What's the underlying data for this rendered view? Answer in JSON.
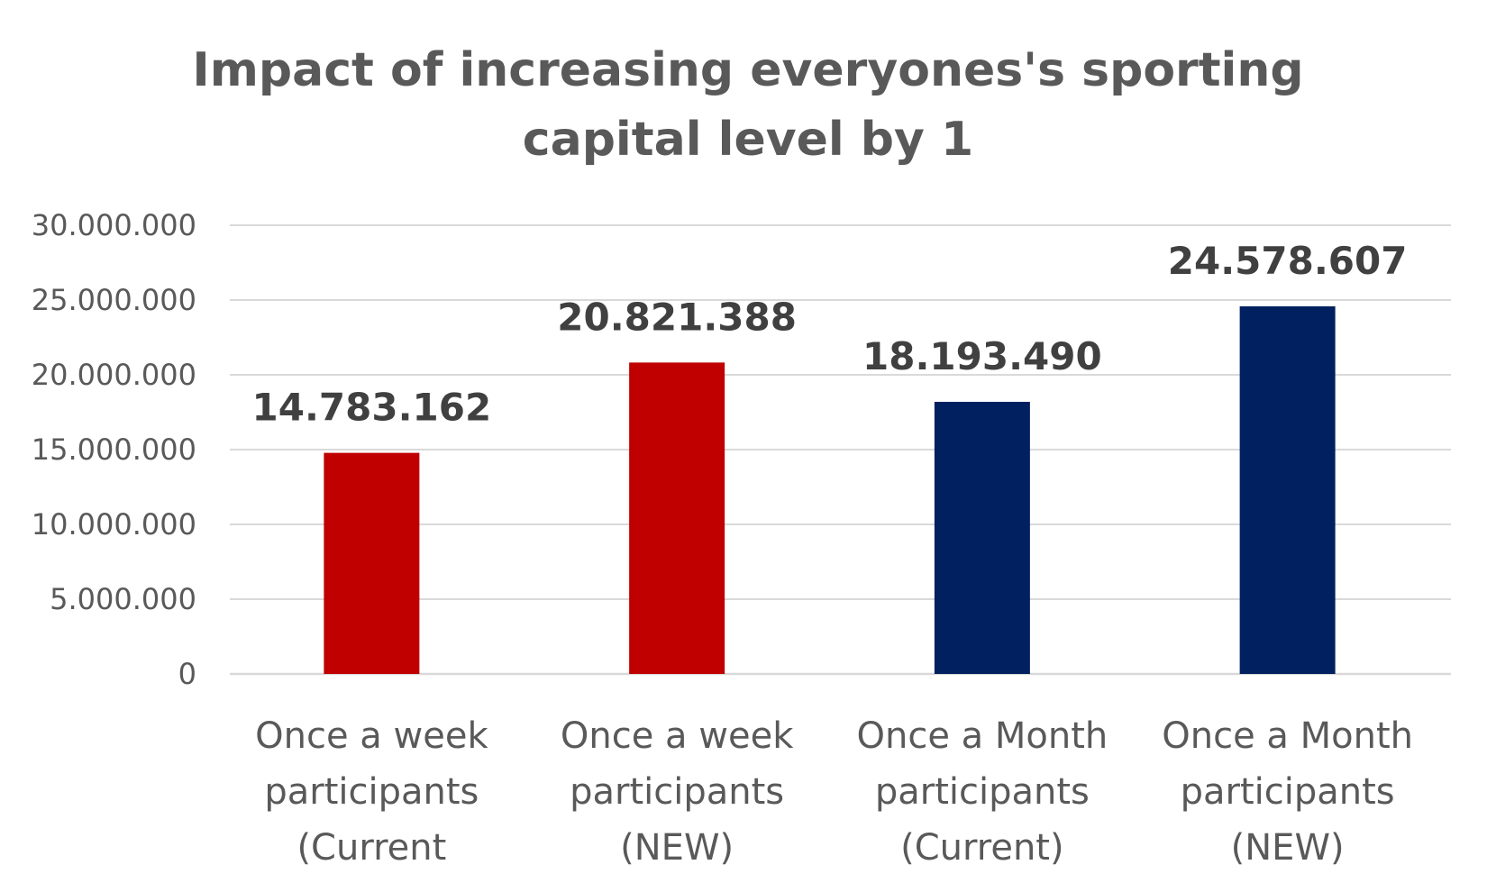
{
  "chart_data": {
    "type": "bar",
    "title_lines": [
      "Impact of increasing everyones's sporting",
      "capital level by 1"
    ],
    "title": "Impact of increasing everyones's sporting capital level by 1",
    "categories": [
      "Once a week participants (Current",
      "Once a week participants (NEW)",
      "Once a Month participants (Current)",
      "Once a Month participants (NEW)"
    ],
    "category_lines": [
      [
        "Once a week",
        "participants",
        "(Current"
      ],
      [
        "Once a week",
        "participants",
        "(NEW)"
      ],
      [
        "Once a Month",
        "participants",
        "(Current)"
      ],
      [
        "Once a Month",
        "participants",
        "(NEW)"
      ]
    ],
    "values": [
      14783162,
      20821388,
      18193490,
      24578607
    ],
    "value_labels": [
      "14.783.162",
      "20.821.388",
      "18.193.490",
      "24.578.607"
    ],
    "bar_colors": [
      "#c00000",
      "#c00000",
      "#002060",
      "#002060"
    ],
    "yticks": [
      0,
      5000000,
      10000000,
      15000000,
      20000000,
      25000000,
      30000000
    ],
    "ytick_labels": [
      "0",
      "5.000.000",
      "10.000.000",
      "15.000.000",
      "20.000.000",
      "25.000.000",
      "30.000.000"
    ],
    "ylim": [
      0,
      30000000
    ],
    "xlabel": "",
    "ylabel": "",
    "grid": true,
    "legend": "none"
  }
}
